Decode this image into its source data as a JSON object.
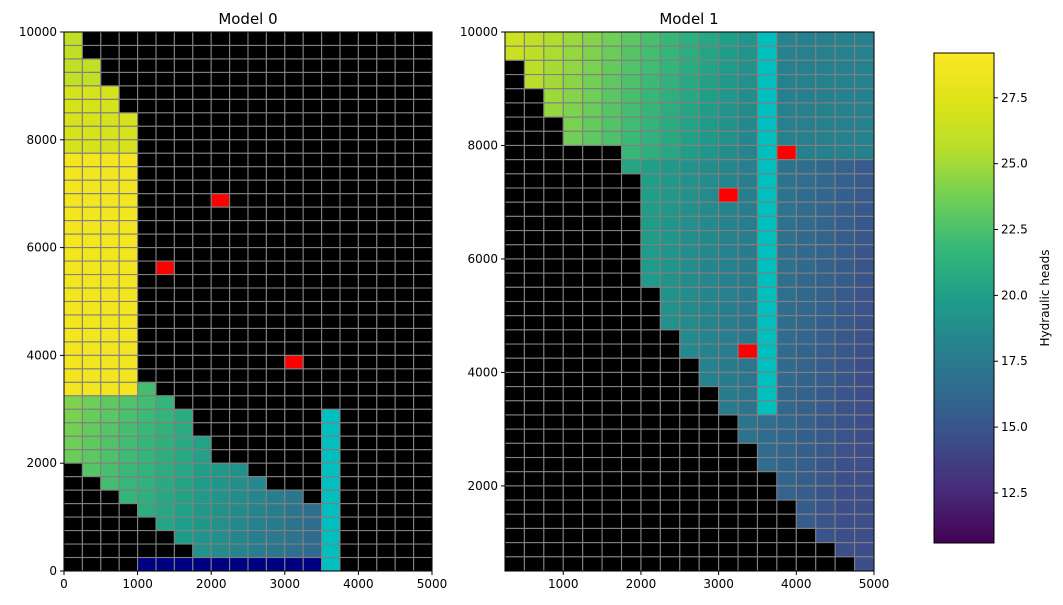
{
  "colors": {
    "inactive": "#000000",
    "gridline": "#808080",
    "well": "#ff0000",
    "river": "#00bfbf",
    "chd": "#000080"
  },
  "colorbar": {
    "label": "Hydraulic heads",
    "ticks": [
      "12.5",
      "15.0",
      "17.5",
      "20.0",
      "22.5",
      "25.0",
      "27.5"
    ],
    "tick_values": [
      12.5,
      15.0,
      17.5,
      20.0,
      22.5,
      25.0,
      27.5
    ],
    "range": [
      10.6,
      29.2
    ],
    "colormap": "viridis"
  },
  "chart_data": [
    {
      "type": "heatmap",
      "title": "Model 0",
      "xlim": [
        0,
        5000
      ],
      "ylim": [
        0,
        10000
      ],
      "x_ticks": [
        "0",
        "1000",
        "2000",
        "3000",
        "4000",
        "5000"
      ],
      "x_tick_values": [
        0,
        1000,
        2000,
        3000,
        4000,
        5000
      ],
      "y_ticks": [
        "0",
        "2000",
        "4000",
        "6000",
        "8000",
        "10000"
      ],
      "y_tick_values": [
        0,
        2000,
        4000,
        6000,
        8000,
        10000
      ],
      "grid": {
        "ncol": 20,
        "nrow": 40,
        "cell_dx": 250,
        "cell_dy": 250
      },
      "active_rows": [
        [
          0,
          0
        ],
        [
          0,
          0
        ],
        [
          0,
          1
        ],
        [
          0,
          1
        ],
        [
          0,
          2
        ],
        [
          0,
          2
        ],
        [
          0,
          3
        ],
        [
          0,
          3
        ],
        [
          0,
          3
        ],
        [
          0,
          3
        ],
        [
          0,
          3
        ],
        [
          0,
          3
        ],
        [
          0,
          3
        ],
        [
          0,
          3
        ],
        [
          0,
          3
        ],
        [
          0,
          3
        ],
        [
          0,
          3
        ],
        [
          0,
          3
        ],
        [
          0,
          3
        ],
        [
          0,
          3
        ],
        [
          0,
          3
        ],
        [
          0,
          3
        ],
        [
          0,
          3
        ],
        [
          0,
          3
        ],
        [
          0,
          3
        ],
        [
          0,
          3
        ],
        [
          0,
          4
        ],
        [
          0,
          5
        ],
        [
          0,
          6
        ],
        [
          0,
          6
        ],
        [
          0,
          7
        ],
        [
          0,
          7
        ],
        [
          1,
          9
        ],
        [
          2,
          10
        ],
        [
          3,
          12
        ],
        [
          4,
          13
        ],
        [
          5,
          14
        ],
        [
          6,
          14
        ],
        [
          7,
          13
        ],
        [
          8,
          12
        ]
      ],
      "wells": [
        [
          12,
          8
        ],
        [
          17,
          5
        ],
        [
          24,
          12
        ]
      ],
      "river": {
        "col": 14,
        "rows": [
          28,
          39
        ]
      },
      "chd": {
        "row": 39,
        "cols": [
          4,
          13
        ]
      }
    },
    {
      "type": "heatmap",
      "title": "Model 1",
      "xlim": [
        250,
        5000
      ],
      "ylim": [
        500,
        10000
      ],
      "x_ticks": [
        "1000",
        "2000",
        "3000",
        "4000",
        "5000"
      ],
      "x_tick_values": [
        1000,
        2000,
        3000,
        4000,
        5000
      ],
      "y_ticks": [
        "2000",
        "4000",
        "6000",
        "8000",
        "10000"
      ],
      "y_tick_values": [
        2000,
        4000,
        6000,
        8000,
        10000
      ],
      "grid": {
        "ncol": 19,
        "nrow": 38,
        "cell_dx": 250,
        "cell_dy": 250
      },
      "active_rows": [
        [
          0,
          18
        ],
        [
          0,
          18
        ],
        [
          1,
          18
        ],
        [
          1,
          18
        ],
        [
          2,
          18
        ],
        [
          2,
          18
        ],
        [
          3,
          18
        ],
        [
          3,
          18
        ],
        [
          6,
          18
        ],
        [
          6,
          18
        ],
        [
          7,
          18
        ],
        [
          7,
          18
        ],
        [
          7,
          18
        ],
        [
          7,
          18
        ],
        [
          7,
          18
        ],
        [
          7,
          18
        ],
        [
          7,
          18
        ],
        [
          7,
          18
        ],
        [
          8,
          18
        ],
        [
          8,
          18
        ],
        [
          8,
          18
        ],
        [
          9,
          18
        ],
        [
          9,
          18
        ],
        [
          10,
          18
        ],
        [
          10,
          18
        ],
        [
          11,
          18
        ],
        [
          11,
          18
        ],
        [
          12,
          18
        ],
        [
          12,
          18
        ],
        [
          13,
          18
        ],
        [
          13,
          18
        ],
        [
          14,
          18
        ],
        [
          14,
          18
        ],
        [
          15,
          18
        ],
        [
          15,
          18
        ],
        [
          16,
          18
        ],
        [
          17,
          18
        ],
        [
          18,
          18
        ]
      ],
      "wells": [
        [
          8,
          14
        ],
        [
          11,
          11
        ],
        [
          22,
          12
        ]
      ],
      "river": {
        "col": 13,
        "rows": [
          0,
          26
        ]
      },
      "chd": null
    }
  ]
}
